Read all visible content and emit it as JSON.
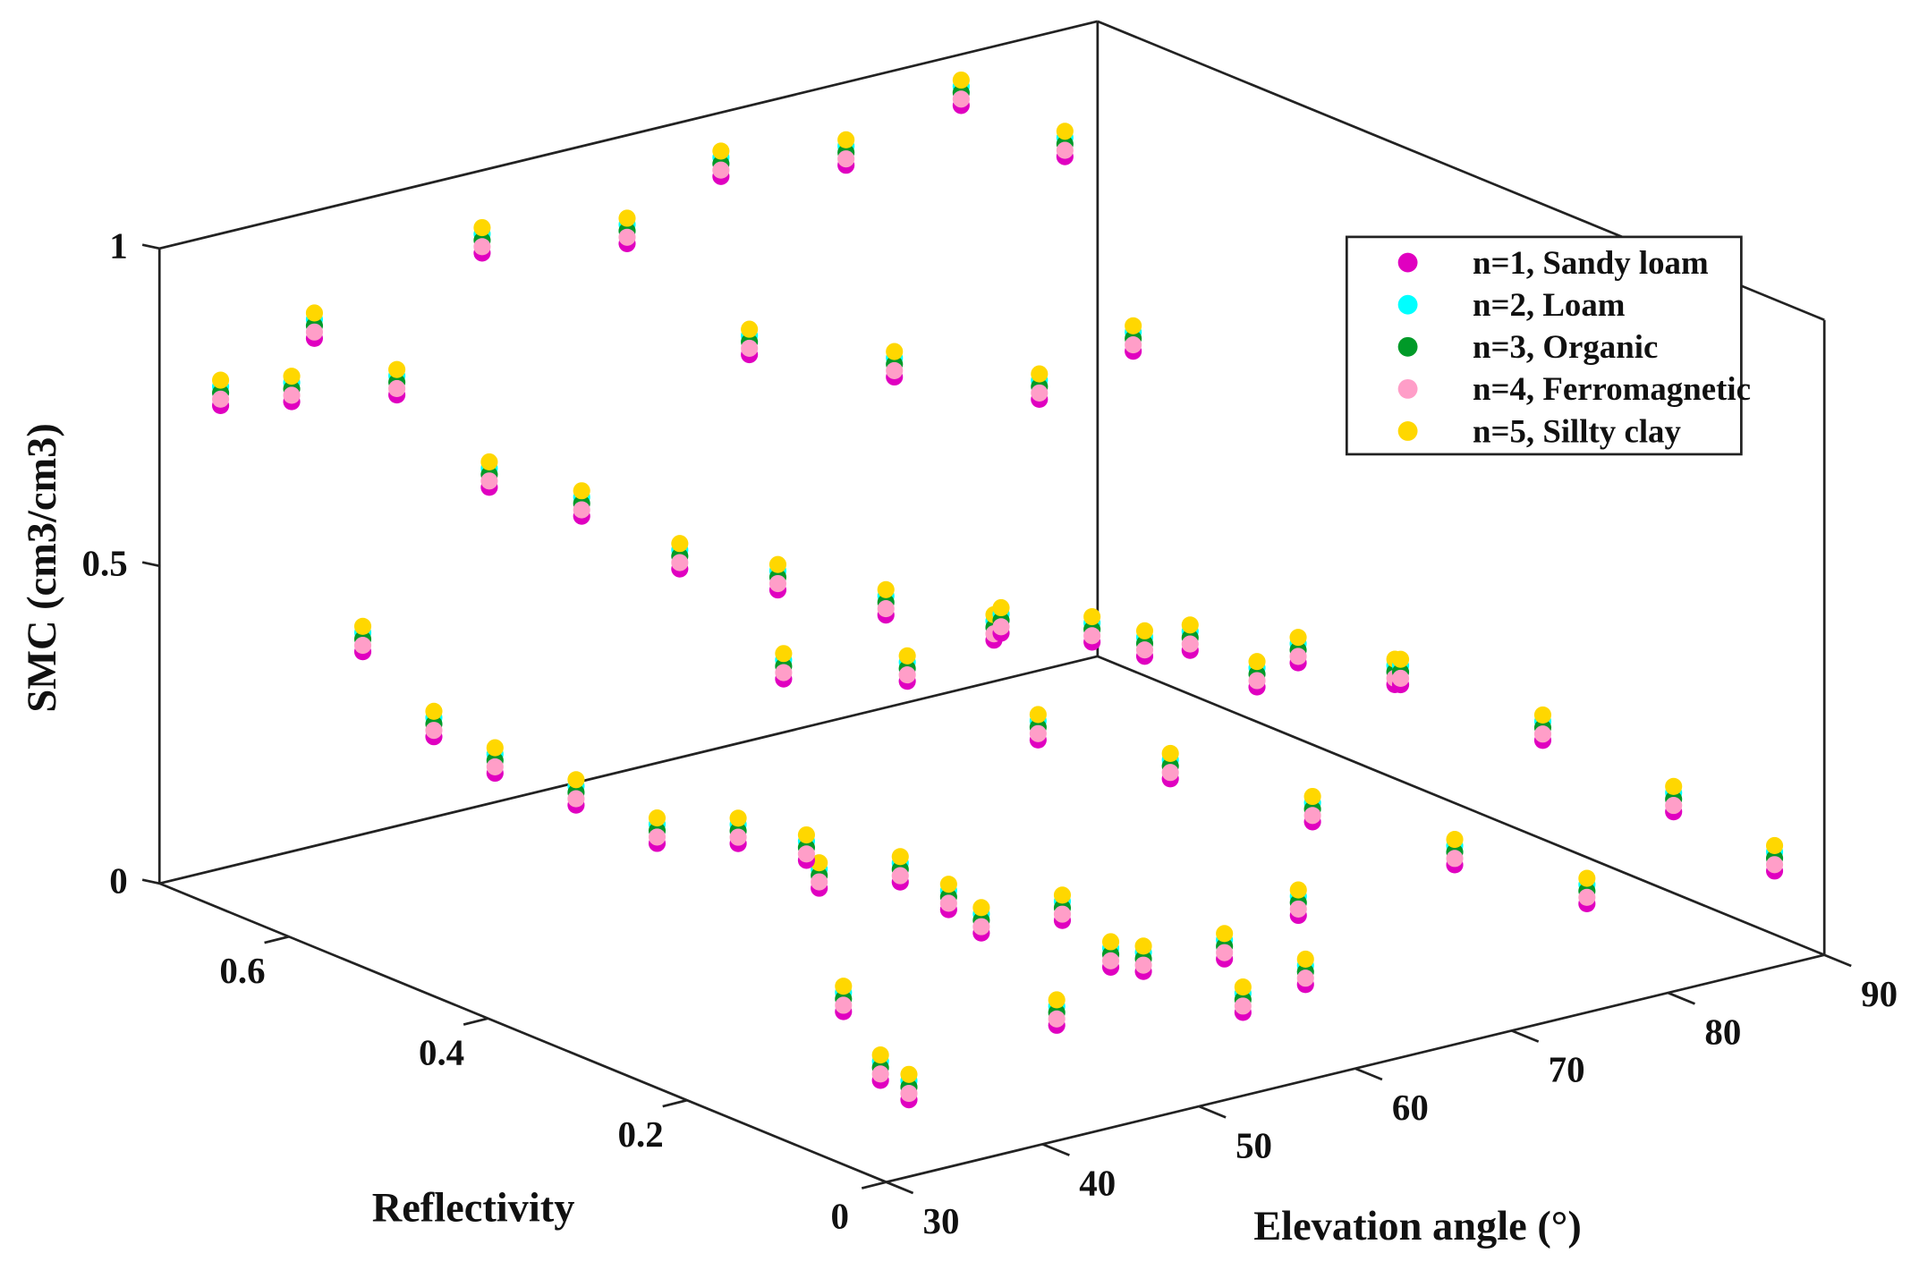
{
  "chart_data": {
    "type": "scatter",
    "subtype": "3d",
    "xlabel": "Elevation angle (°)",
    "ylabel": "Reflectivity",
    "zlabel": "SMC (cm3/cm3)",
    "xlim": [
      30,
      90
    ],
    "ylim": [
      0,
      0.73
    ],
    "zlim": [
      0,
      1
    ],
    "xticks": [
      "30",
      "40",
      "50",
      "60",
      "70",
      "80",
      "90"
    ],
    "yticks": [
      "0",
      "0.2",
      "0.4",
      "0.6"
    ],
    "zticks": [
      "0",
      "0.5",
      "1"
    ],
    "legend_position": "top-right",
    "grid": false,
    "x": [
      32,
      34,
      36,
      38,
      40,
      42,
      44,
      46,
      48,
      50,
      52,
      54,
      56,
      58,
      60,
      38,
      42,
      46,
      50,
      55,
      60,
      65,
      70,
      75,
      80,
      85,
      88,
      50,
      58,
      64,
      72,
      80,
      86,
      62,
      70,
      78,
      84,
      44,
      48,
      52,
      56,
      62,
      66,
      70,
      74,
      78,
      82,
      86,
      88,
      90,
      66,
      72,
      76,
      60,
      54,
      40,
      36,
      34,
      46,
      64
    ],
    "y": [
      0.7,
      0.66,
      0.62,
      0.58,
      0.55,
      0.5,
      0.45,
      0.4,
      0.35,
      0.3,
      0.25,
      0.2,
      0.15,
      0.1,
      0.05,
      0.7,
      0.68,
      0.65,
      0.62,
      0.6,
      0.58,
      0.55,
      0.52,
      0.5,
      0.48,
      0.45,
      0.4,
      0.72,
      0.7,
      0.7,
      0.7,
      0.71,
      0.7,
      0.64,
      0.62,
      0.6,
      0.6,
      0.3,
      0.22,
      0.12,
      0.05,
      0.35,
      0.28,
      0.2,
      0.12,
      0.05,
      0.3,
      0.22,
      0.12,
      0.05,
      0.45,
      0.4,
      0.35,
      0.45,
      0.48,
      0.2,
      0.1,
      0.04,
      0.08,
      0.12
    ],
    "series": [
      {
        "name": "n=1, Sandy  loam",
        "color": "#e000c0",
        "z": [
          0.76,
          0.78,
          0.4,
          0.28,
          0.23,
          0.2,
          0.16,
          0.18,
          0.13,
          0.16,
          0.1,
          0.14,
          0.08,
          0.12,
          0.1,
          0.83,
          0.73,
          0.58,
          0.53,
          0.43,
          0.38,
          0.33,
          0.28,
          0.26,
          0.23,
          0.2,
          0.18,
          0.88,
          0.86,
          0.93,
          0.9,
          0.94,
          0.83,
          0.7,
          0.63,
          0.56,
          0.6,
          0.23,
          0.18,
          0.13,
          0.08,
          0.28,
          0.24,
          0.2,
          0.16,
          0.12,
          0.28,
          0.22,
          0.16,
          0.1,
          0.36,
          0.32,
          0.28,
          0.32,
          0.34,
          0.08,
          0.06,
          0.08,
          0.1,
          0.14
        ]
      },
      {
        "name": "n=2, Loam",
        "color": "#00ffff",
        "z": [
          0.79,
          0.81,
          0.43,
          0.31,
          0.26,
          0.23,
          0.19,
          0.21,
          0.16,
          0.19,
          0.13,
          0.17,
          0.11,
          0.15,
          0.13,
          0.86,
          0.76,
          0.61,
          0.56,
          0.46,
          0.41,
          0.36,
          0.31,
          0.29,
          0.26,
          0.23,
          0.21,
          0.91,
          0.89,
          0.96,
          0.93,
          0.97,
          0.86,
          0.73,
          0.66,
          0.59,
          0.63,
          0.26,
          0.21,
          0.16,
          0.11,
          0.31,
          0.27,
          0.23,
          0.19,
          0.15,
          0.31,
          0.25,
          0.19,
          0.13,
          0.39,
          0.35,
          0.31,
          0.35,
          0.37,
          0.11,
          0.09,
          0.11,
          0.13,
          0.17
        ]
      },
      {
        "name": "n=3, Organic",
        "color": "#009a28",
        "z": [
          0.78,
          0.8,
          0.42,
          0.3,
          0.25,
          0.22,
          0.18,
          0.2,
          0.15,
          0.18,
          0.12,
          0.16,
          0.1,
          0.14,
          0.12,
          0.85,
          0.75,
          0.6,
          0.55,
          0.45,
          0.4,
          0.35,
          0.3,
          0.28,
          0.25,
          0.22,
          0.2,
          0.9,
          0.88,
          0.95,
          0.92,
          0.96,
          0.85,
          0.72,
          0.65,
          0.58,
          0.62,
          0.25,
          0.2,
          0.15,
          0.1,
          0.3,
          0.26,
          0.22,
          0.18,
          0.14,
          0.3,
          0.24,
          0.18,
          0.12,
          0.38,
          0.34,
          0.3,
          0.34,
          0.36,
          0.1,
          0.08,
          0.1,
          0.12,
          0.16
        ]
      },
      {
        "name": "n=4, Ferromagnetic",
        "color": "#ff9ec8",
        "z": [
          0.77,
          0.79,
          0.41,
          0.29,
          0.24,
          0.21,
          0.17,
          0.19,
          0.14,
          0.17,
          0.11,
          0.15,
          0.09,
          0.13,
          0.11,
          0.84,
          0.74,
          0.59,
          0.54,
          0.44,
          0.39,
          0.34,
          0.29,
          0.27,
          0.24,
          0.21,
          0.19,
          0.89,
          0.87,
          0.94,
          0.91,
          0.95,
          0.84,
          0.71,
          0.64,
          0.57,
          0.61,
          0.24,
          0.19,
          0.14,
          0.09,
          0.29,
          0.25,
          0.21,
          0.17,
          0.13,
          0.29,
          0.23,
          0.17,
          0.11,
          0.37,
          0.33,
          0.29,
          0.33,
          0.35,
          0.09,
          0.07,
          0.09,
          0.11,
          0.15
        ]
      },
      {
        "name": "n=5, Sillty clay",
        "color": "#ffd700",
        "z": [
          0.8,
          0.82,
          0.44,
          0.32,
          0.27,
          0.24,
          0.2,
          0.22,
          0.17,
          0.2,
          0.14,
          0.18,
          0.12,
          0.16,
          0.14,
          0.87,
          0.77,
          0.62,
          0.57,
          0.47,
          0.42,
          0.37,
          0.32,
          0.3,
          0.27,
          0.24,
          0.22,
          0.92,
          0.9,
          0.97,
          0.94,
          0.98,
          0.87,
          0.74,
          0.67,
          0.6,
          0.64,
          0.27,
          0.22,
          0.17,
          0.12,
          0.32,
          0.28,
          0.24,
          0.2,
          0.16,
          0.32,
          0.26,
          0.2,
          0.14,
          0.4,
          0.36,
          0.32,
          0.36,
          0.38,
          0.12,
          0.1,
          0.12,
          0.14,
          0.18
        ]
      }
    ]
  }
}
